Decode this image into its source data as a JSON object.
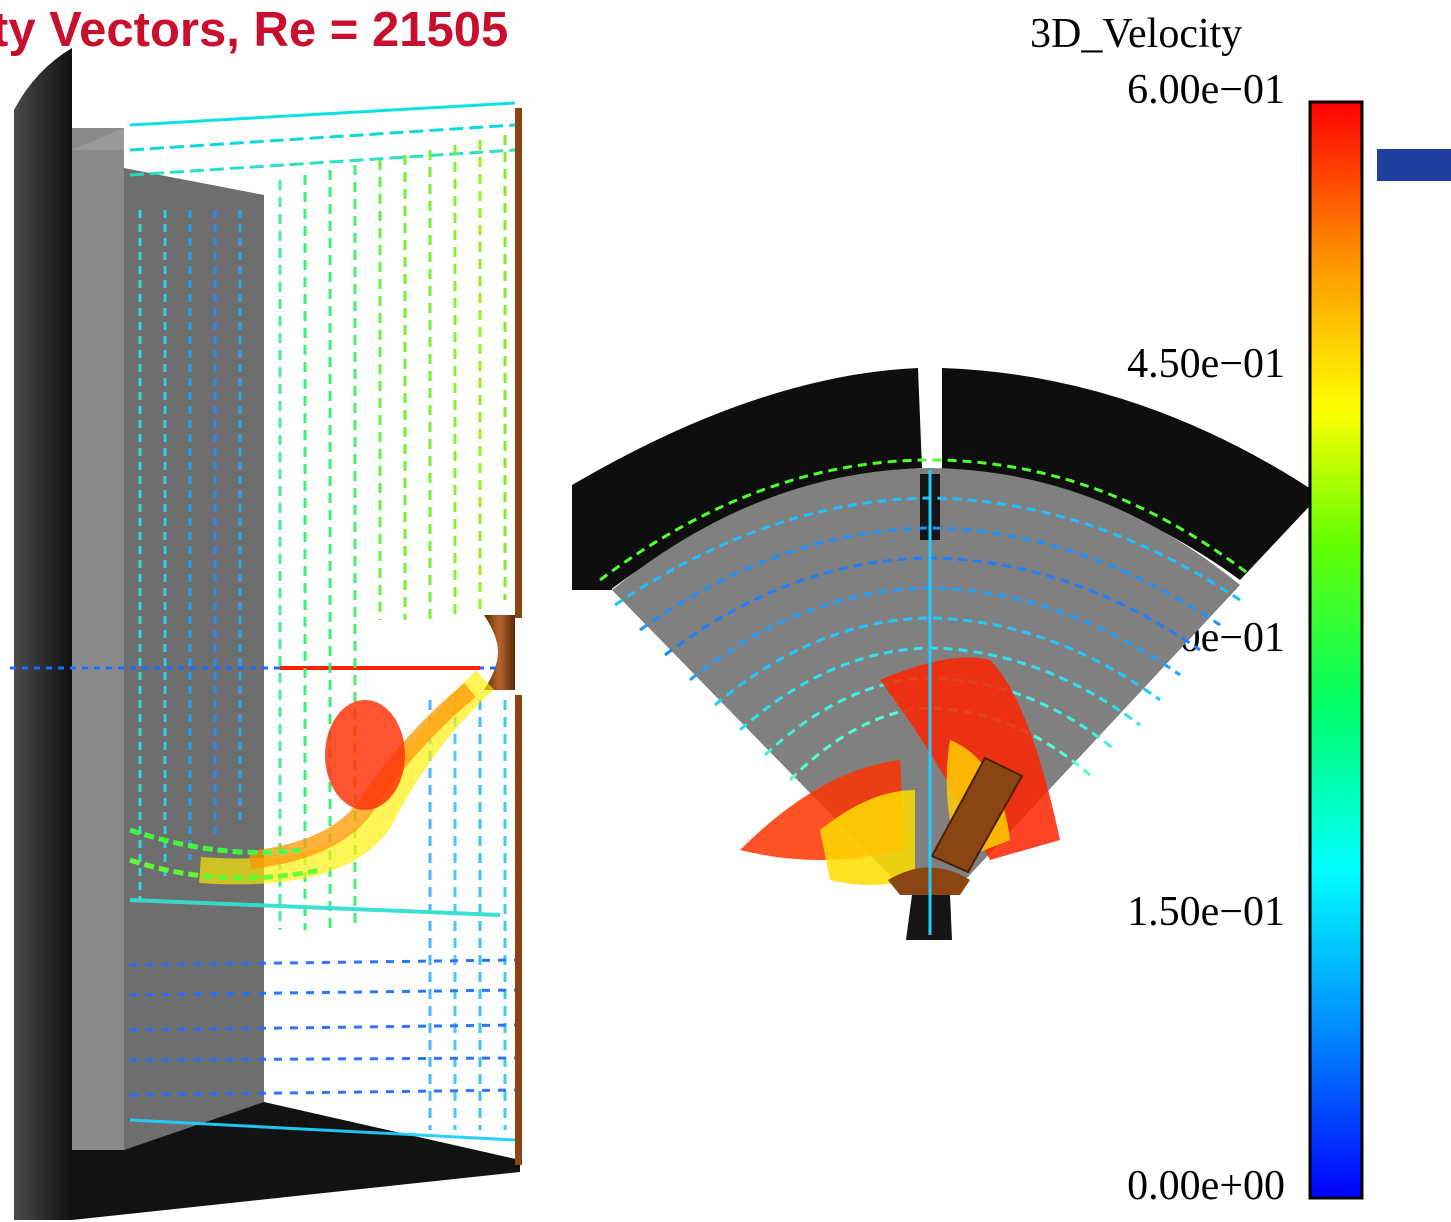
{
  "title": "ty Vectors, Re = 21505",
  "legend": {
    "variable": "3D_Velocity",
    "ticks": [
      "6.00e−01",
      "4.50e−01",
      "3.00e−01",
      "1.50e−01",
      "0.00e+00"
    ],
    "min": 0.0,
    "max": 0.6,
    "colormap": [
      "#0000ff",
      "#0088ff",
      "#00ffff",
      "#00ff66",
      "#66ff00",
      "#ffff00",
      "#ff9900",
      "#ff0000"
    ]
  },
  "colors": {
    "title": "#c8102e",
    "wall_dark": "#151515",
    "baffle_gray": "#7a7a7a",
    "impeller_brown": "#8b4513",
    "slide_accent": "#2040a0"
  }
}
